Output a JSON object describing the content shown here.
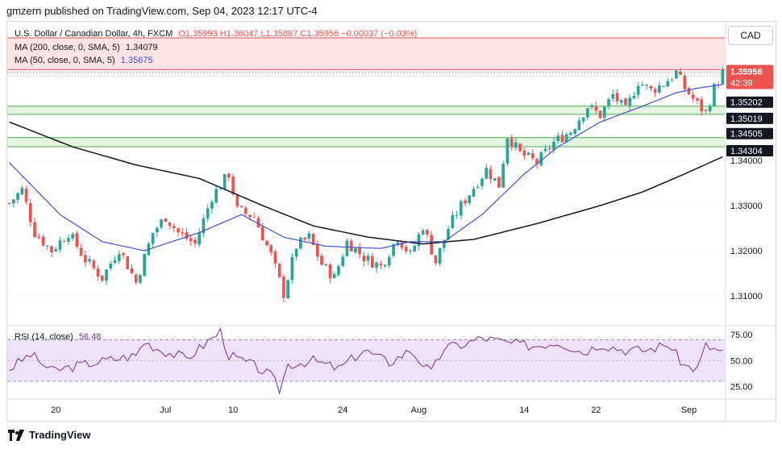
{
  "publisher": "gmzern published on TradingView.com, Sep 04, 2023 12:17 UTC-4",
  "legend": {
    "symbol": "U.S. Dollar / Canadian Dollar, 4h, FXCM",
    "ohlc": "O1.35993  H1.36047  L1.35887  C1.35956  −0.00037 (−0.03%)",
    "ma200_label": "MA (200, close, 0, SMA, 5)",
    "ma200_value": "1.34079",
    "ma50_label": "MA (50, close, 0, SMA, 5)",
    "ma50_value": "1.35675",
    "rsi_label": "RSI (14, close)",
    "rsi_value": "58.48"
  },
  "currency_button": "CAD",
  "branding": "TradingView",
  "colors": {
    "up": "#26a69a",
    "down": "#ef5350",
    "ma50": "#3f51d6",
    "ma200": "#131722",
    "rsi": "#7e2f8e",
    "rsi_band": "#ede2f7",
    "zone": "#e4f5df",
    "zone_line": "#4caf50",
    "top_zone": "#fde3e3",
    "last_price": "#ef5350"
  },
  "chart_data": [
    {
      "type": "candlestick",
      "timeframe": "4h",
      "x_ticks": [
        "20",
        "Jul",
        "10",
        "24",
        "Aug",
        "14",
        "22",
        "Sep"
      ],
      "y_ticks": [
        "1.34000",
        "1.33000",
        "1.32000",
        "1.31000"
      ],
      "ylim": [
        1.304,
        1.3625
      ],
      "last_price": {
        "value": "1.35956",
        "countdown": "42:39"
      },
      "horizontal_levels": [
        {
          "label": "1.36012",
          "value": 1.36012
        },
        {
          "label": "1.35202",
          "value": 1.35202
        },
        {
          "label": "1.35019",
          "value": 1.35019
        },
        {
          "label": "1.34505",
          "value": 1.34505
        },
        {
          "label": "1.34304",
          "value": 1.34304
        }
      ],
      "zones": [
        [
          1.35019,
          1.35202
        ],
        [
          1.34304,
          1.34505
        ]
      ],
      "path_anchors": [
        [
          0,
          1.3305
        ],
        [
          3,
          1.3335
        ],
        [
          6,
          1.324
        ],
        [
          10,
          1.32
        ],
        [
          14,
          1.324
        ],
        [
          18,
          1.318
        ],
        [
          22,
          1.314
        ],
        [
          26,
          1.3205
        ],
        [
          30,
          1.313
        ],
        [
          34,
          1.324
        ],
        [
          37,
          1.3275
        ],
        [
          40,
          1.324
        ],
        [
          44,
          1.3215
        ],
        [
          48,
          1.332
        ],
        [
          52,
          1.337
        ],
        [
          54,
          1.329
        ],
        [
          58,
          1.3275
        ],
        [
          62,
          1.319
        ],
        [
          65,
          1.3105
        ],
        [
          68,
          1.321
        ],
        [
          71,
          1.323
        ],
        [
          74,
          1.317
        ],
        [
          77,
          1.314
        ],
        [
          80,
          1.322
        ],
        [
          84,
          1.3185
        ],
        [
          88,
          1.3165
        ],
        [
          92,
          1.323
        ],
        [
          95,
          1.319
        ],
        [
          98,
          1.3255
        ],
        [
          101,
          1.3175
        ],
        [
          104,
          1.325
        ],
        [
          107,
          1.33
        ],
        [
          110,
          1.334
        ],
        [
          113,
          1.338
        ],
        [
          116,
          1.3345
        ],
        [
          118,
          1.3455
        ],
        [
          121,
          1.3415
        ],
        [
          125,
          1.3395
        ],
        [
          129,
          1.344
        ],
        [
          133,
          1.3465
        ],
        [
          137,
          1.352
        ],
        [
          140,
          1.35
        ],
        [
          143,
          1.3545
        ],
        [
          146,
          1.351
        ],
        [
          149,
          1.3575
        ],
        [
          152,
          1.3555
        ],
        [
          155,
          1.357
        ],
        [
          158,
          1.3595
        ],
        [
          160,
          1.356
        ],
        [
          163,
          1.3525
        ],
        [
          165,
          1.3505
        ],
        [
          167,
          1.356
        ],
        [
          169,
          1.3593
        ]
      ],
      "series": [
        {
          "name": "MA (200, close, 0, SMA, 5)",
          "values": [
            [
              0,
              1.3485
            ],
            [
              15,
              1.343
            ],
            [
              30,
              1.339
            ],
            [
              45,
              1.336
            ],
            [
              60,
              1.33
            ],
            [
              72,
              1.3255
            ],
            [
              85,
              1.323
            ],
            [
              98,
              1.3215
            ],
            [
              110,
              1.3225
            ],
            [
              125,
              1.326
            ],
            [
              140,
              1.33
            ],
            [
              150,
              1.333
            ],
            [
              160,
              1.337
            ],
            [
              169,
              1.3408
            ]
          ]
        },
        {
          "name": "MA (50, close, 0, SMA, 5)",
          "values": [
            [
              0,
              1.3395
            ],
            [
              12,
              1.328
            ],
            [
              22,
              1.322
            ],
            [
              32,
              1.32
            ],
            [
              45,
              1.324
            ],
            [
              55,
              1.328
            ],
            [
              65,
              1.323
            ],
            [
              75,
              1.321
            ],
            [
              88,
              1.3205
            ],
            [
              95,
              1.322
            ],
            [
              103,
              1.322
            ],
            [
              112,
              1.328
            ],
            [
              122,
              1.337
            ],
            [
              130,
              1.343
            ],
            [
              140,
              1.3485
            ],
            [
              150,
              1.352
            ],
            [
              158,
              1.355
            ],
            [
              163,
              1.356
            ],
            [
              169,
              1.3568
            ]
          ]
        },
        {
          "name": "RSI (14, close)",
          "ylim": [
            10,
            90
          ],
          "y_ticks": [
            "75.00",
            "50.00",
            "25.00"
          ],
          "band": [
            30,
            70
          ],
          "values": [
            [
              0,
              42
            ],
            [
              5,
              56
            ],
            [
              10,
              40
            ],
            [
              20,
              48
            ],
            [
              30,
              55
            ],
            [
              32,
              68
            ],
            [
              36,
              60
            ],
            [
              42,
              52
            ],
            [
              47,
              68
            ],
            [
              50,
              78
            ],
            [
              52,
              55
            ],
            [
              58,
              45
            ],
            [
              62,
              35
            ],
            [
              64,
              22
            ],
            [
              66,
              46
            ],
            [
              72,
              50
            ],
            [
              78,
              42
            ],
            [
              84,
              60
            ],
            [
              90,
              48
            ],
            [
              95,
              60
            ],
            [
              100,
              38
            ],
            [
              103,
              62
            ],
            [
              108,
              66
            ],
            [
              112,
              72
            ],
            [
              118,
              67
            ],
            [
              124,
              64
            ],
            [
              130,
              68
            ],
            [
              136,
              58
            ],
            [
              140,
              66
            ],
            [
              146,
              60
            ],
            [
              151,
              60
            ],
            [
              156,
              66
            ],
            [
              160,
              45
            ],
            [
              163,
              42
            ],
            [
              165,
              64
            ],
            [
              169,
              58
            ]
          ]
        }
      ]
    }
  ]
}
